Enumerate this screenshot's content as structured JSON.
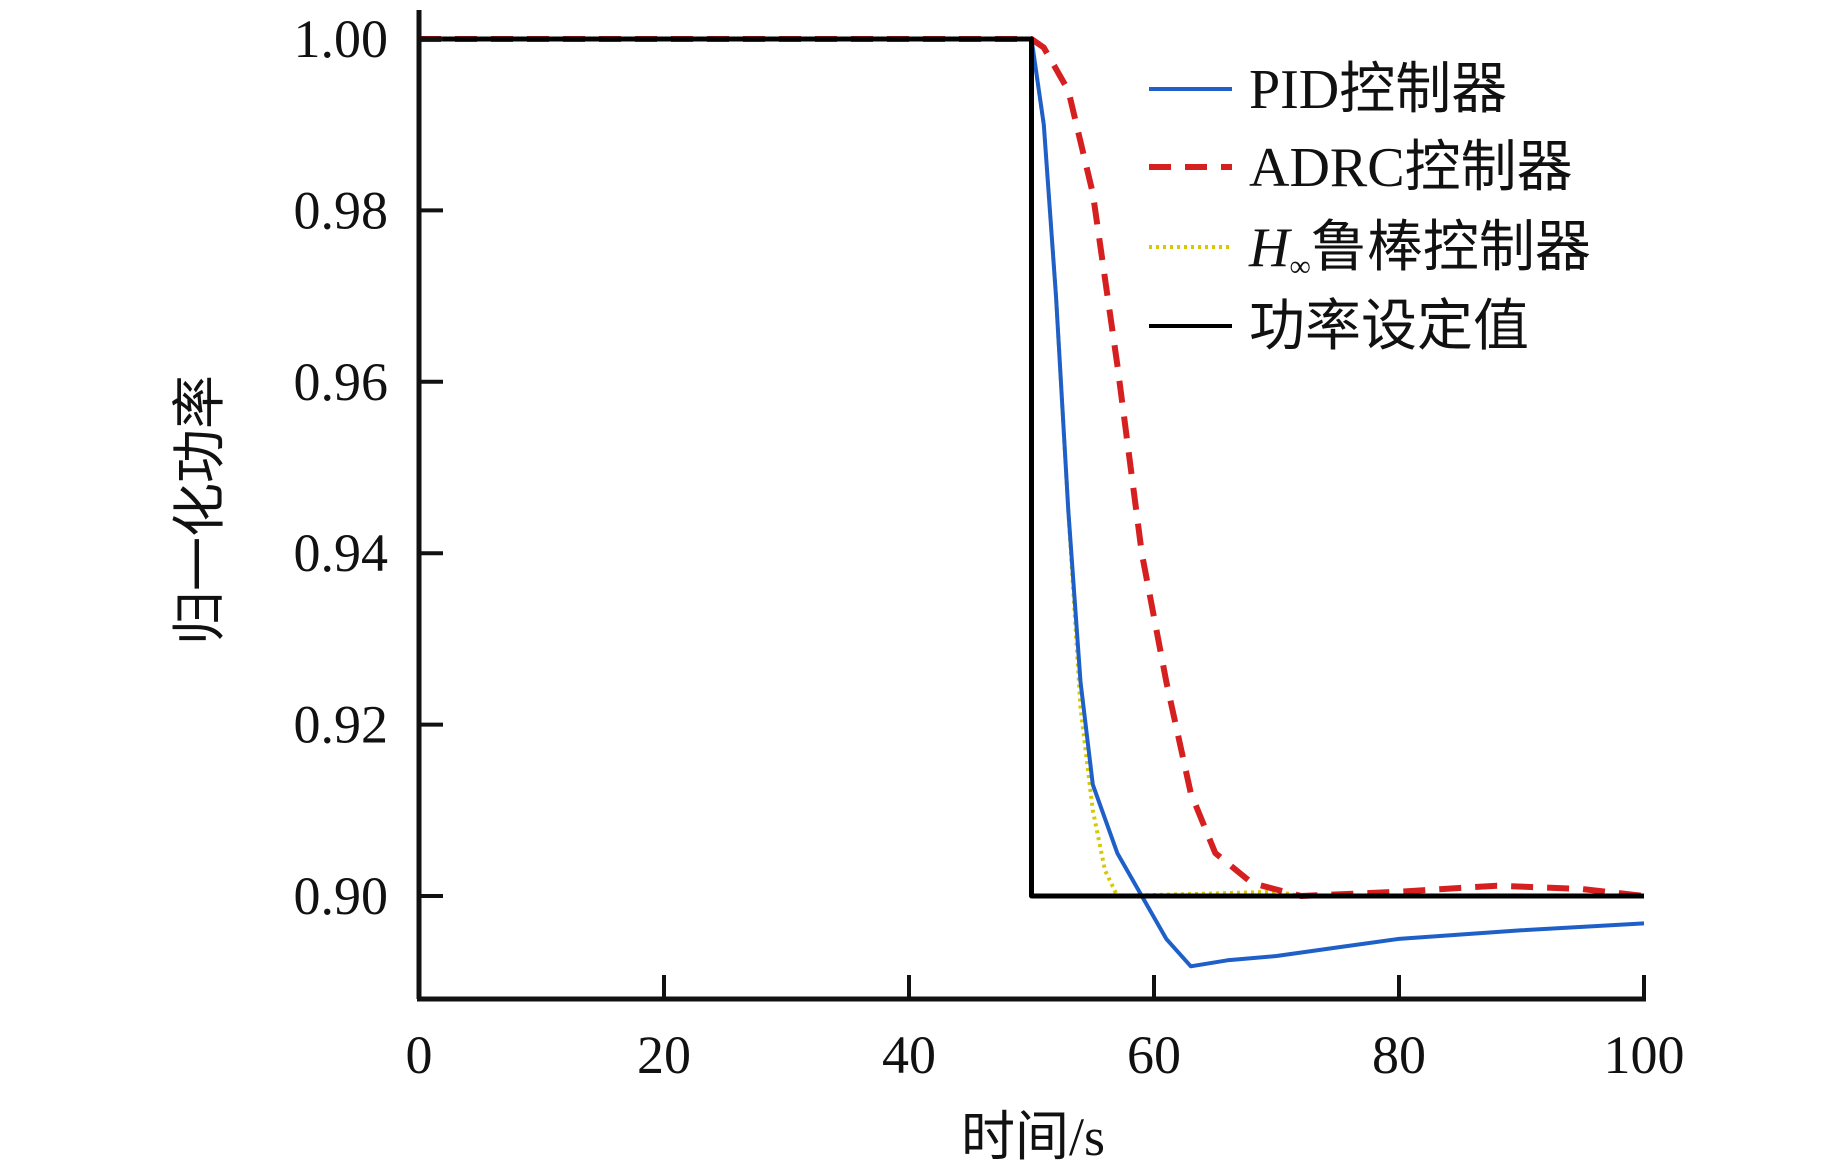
{
  "chart_data": {
    "type": "line",
    "title": "",
    "xlabel": "时间/s",
    "ylabel": "归一化功率",
    "xlim": [
      0,
      100
    ],
    "ylim": [
      0.888,
      1.0
    ],
    "xticks": [
      0,
      20,
      40,
      60,
      80,
      100
    ],
    "xtick_labels": [
      "0",
      "20",
      "40",
      "60",
      "80",
      "100"
    ],
    "yticks": [
      0.9,
      0.92,
      0.94,
      0.96,
      0.98,
      1.0
    ],
    "ytick_labels": [
      "0.90",
      "0.92",
      "0.94",
      "0.96",
      "0.98",
      "1.00"
    ],
    "grid": false,
    "legend_position": "top-right",
    "series": [
      {
        "name": "PID控制器",
        "color": "#1f5fc8",
        "style": "solid",
        "x": [
          0,
          50,
          51,
          52,
          53,
          54,
          55,
          57,
          59,
          61,
          63,
          66,
          70,
          75,
          80,
          90,
          100
        ],
        "y": [
          1.0,
          1.0,
          0.99,
          0.97,
          0.945,
          0.925,
          0.913,
          0.905,
          0.9,
          0.895,
          0.8918,
          0.8925,
          0.893,
          0.894,
          0.895,
          0.896,
          0.8968
        ]
      },
      {
        "name": "ADRC控制器",
        "color": "#d62020",
        "style": "dashed",
        "x": [
          0,
          50,
          51,
          53,
          55,
          57,
          59,
          61,
          63,
          65,
          68,
          72,
          80,
          88,
          95,
          100
        ],
        "y": [
          1.0,
          1.0,
          0.999,
          0.994,
          0.982,
          0.962,
          0.94,
          0.925,
          0.912,
          0.905,
          0.9015,
          0.9,
          0.9005,
          0.9012,
          0.9008,
          0.9
        ]
      },
      {
        "name": "H∞鲁棒控制器",
        "name_main": "H",
        "name_sub": "∞",
        "name_rest": "鲁棒控制器",
        "color": "#d8c800",
        "style": "dotted",
        "x": [
          0,
          50,
          51,
          52,
          53,
          54,
          55,
          56,
          57,
          65,
          70,
          72,
          100
        ],
        "y": [
          1.0,
          1.0,
          0.99,
          0.97,
          0.945,
          0.922,
          0.91,
          0.903,
          0.9,
          0.9003,
          0.9005,
          0.9,
          0.9
        ]
      },
      {
        "name": "功率设定值",
        "color": "#000000",
        "style": "solid",
        "x": [
          0,
          50,
          50,
          100
        ],
        "y": [
          1.0,
          1.0,
          0.9,
          0.9
        ]
      }
    ]
  }
}
